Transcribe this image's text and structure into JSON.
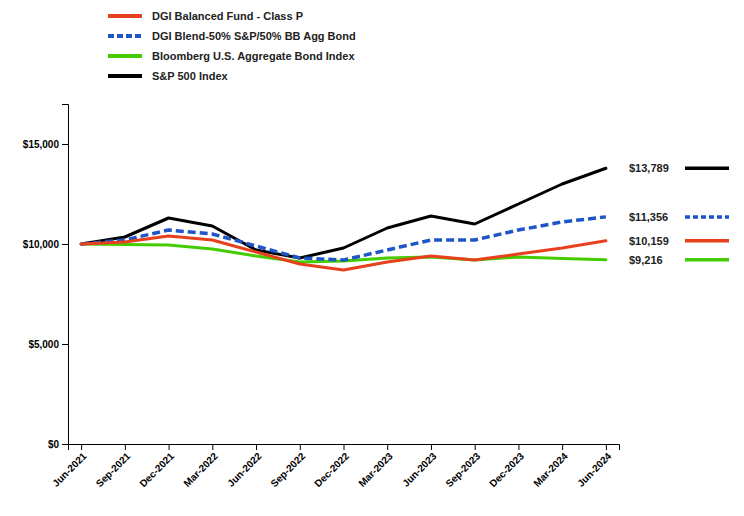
{
  "chart_data": {
    "type": "line",
    "categories": [
      "Jun-2021",
      "Sep-2021",
      "Dec-2021",
      "Mar-2022",
      "Jun-2022",
      "Sep-2022",
      "Dec-2022",
      "Mar-2023",
      "Jun-2023",
      "Sep-2023",
      "Dec-2023",
      "Mar-2024",
      "Jun-2024"
    ],
    "series": [
      {
        "name": "DGI Balanced Fund - Class P",
        "color": "#e8401c",
        "line_style": "solid",
        "values": [
          10000,
          10100,
          10400,
          10200,
          9600,
          9000,
          8700,
          9100,
          9400,
          9200,
          9500,
          9800,
          10159
        ]
      },
      {
        "name": "DGI Blend-50% S&P/50% BB Agg Bond",
        "color": "#1e56c8",
        "line_style": "dashed",
        "values": [
          10000,
          10200,
          10700,
          10500,
          9900,
          9300,
          9200,
          9700,
          10200,
          10200,
          10700,
          11100,
          11356
        ]
      },
      {
        "name": "Bloomberg U.S. Aggregate Bond Index",
        "color": "#44cc00",
        "line_style": "solid",
        "values": [
          10000,
          9980,
          9950,
          9750,
          9400,
          9100,
          9150,
          9300,
          9350,
          9200,
          9350,
          9280,
          9216
        ]
      },
      {
        "name": "S&P 500 Index",
        "color": "#000000",
        "line_style": "solid",
        "values": [
          10000,
          10350,
          11300,
          10900,
          9700,
          9300,
          9800,
          10800,
          11400,
          11000,
          12000,
          13000,
          13789
        ]
      }
    ],
    "annotations": [
      {
        "text": "$13,789",
        "y": 13789,
        "color": "#000000",
        "line_style": "solid"
      },
      {
        "text": "$11,356",
        "y": 11356,
        "color": "#1e56c8",
        "line_style": "dashed"
      },
      {
        "text": "$10,159",
        "y": 10159,
        "color": "#e8401c",
        "line_style": "solid"
      },
      {
        "text": "$9,216",
        "y": 9216,
        "color": "#44cc00",
        "line_style": "solid"
      }
    ],
    "ylim": [
      0,
      17000
    ],
    "yticks": [
      {
        "value": 0,
        "label": "$0"
      },
      {
        "value": 5000,
        "label": "$5,000"
      },
      {
        "value": 10000,
        "label": "$10,000"
      },
      {
        "value": 15000,
        "label": "$15,000"
      }
    ],
    "grid": false,
    "legend": "top"
  }
}
